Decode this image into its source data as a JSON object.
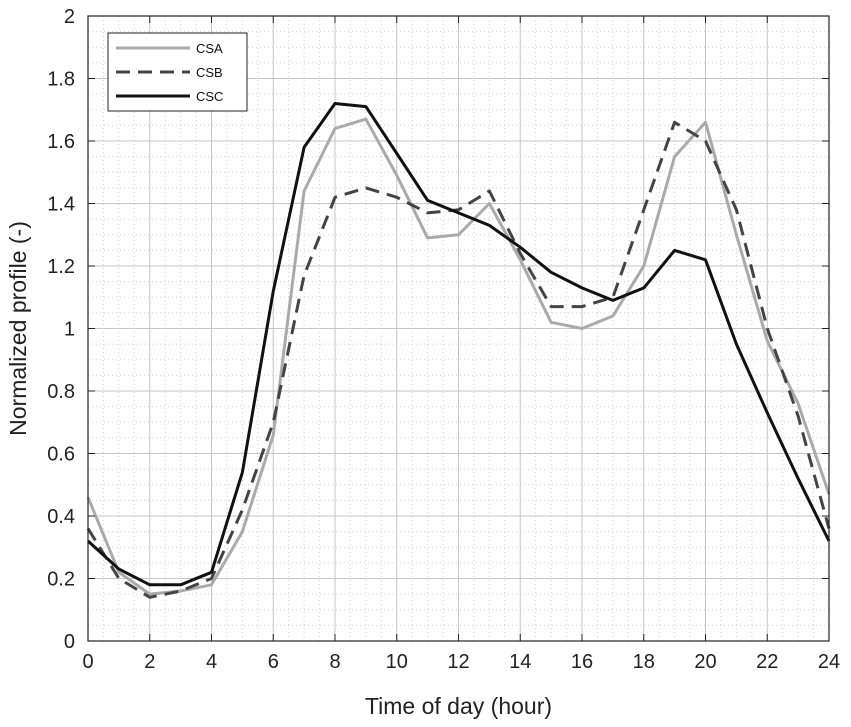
{
  "chart_data": {
    "type": "line",
    "xlabel": "Time of day (hour)",
    "ylabel": "Normalized profile (-)",
    "xlim": [
      0,
      24
    ],
    "ylim": [
      0,
      2
    ],
    "xticks": [
      0,
      2,
      4,
      6,
      8,
      10,
      12,
      14,
      16,
      18,
      20,
      22,
      24
    ],
    "yticks": [
      0,
      0.2,
      0.4,
      0.6,
      0.8,
      1,
      1.2,
      1.4,
      1.6,
      1.8,
      2
    ],
    "xtick_labels": [
      "0",
      "2",
      "4",
      "6",
      "8",
      "10",
      "12",
      "14",
      "16",
      "18",
      "20",
      "22",
      "24"
    ],
    "ytick_labels": [
      "0",
      "0.2",
      "0.4",
      "0.6",
      "0.8",
      "1",
      "1.2",
      "1.4",
      "1.6",
      "1.8",
      "2"
    ],
    "grid": "major and minor (dotted)",
    "legend_position": "top-left",
    "x": [
      0,
      1,
      2,
      3,
      4,
      5,
      6,
      7,
      8,
      9,
      10,
      11,
      12,
      13,
      14,
      15,
      16,
      17,
      18,
      19,
      20,
      21,
      22,
      23,
      24
    ],
    "series": [
      {
        "name": "CSA",
        "color": "#aaaaaa",
        "dash": "solid",
        "values": [
          0.46,
          0.22,
          0.15,
          0.16,
          0.18,
          0.35,
          0.66,
          1.44,
          1.64,
          1.67,
          1.49,
          1.29,
          1.3,
          1.4,
          1.22,
          1.02,
          1.0,
          1.04,
          1.2,
          1.55,
          1.66,
          1.3,
          0.96,
          0.76,
          0.47
        ]
      },
      {
        "name": "CSB",
        "color": "#444444",
        "dash": "dashed",
        "values": [
          0.36,
          0.2,
          0.14,
          0.16,
          0.2,
          0.42,
          0.7,
          1.17,
          1.42,
          1.45,
          1.42,
          1.37,
          1.38,
          1.44,
          1.24,
          1.07,
          1.07,
          1.1,
          1.38,
          1.66,
          1.6,
          1.38,
          1.0,
          0.72,
          0.36
        ]
      },
      {
        "name": "CSC",
        "color": "#111111",
        "dash": "solid",
        "values": [
          0.32,
          0.23,
          0.18,
          0.18,
          0.22,
          0.54,
          1.12,
          1.58,
          1.72,
          1.71,
          1.56,
          1.41,
          1.37,
          1.33,
          1.26,
          1.18,
          1.13,
          1.09,
          1.13,
          1.25,
          1.22,
          0.95,
          0.73,
          0.52,
          0.32
        ]
      }
    ]
  }
}
